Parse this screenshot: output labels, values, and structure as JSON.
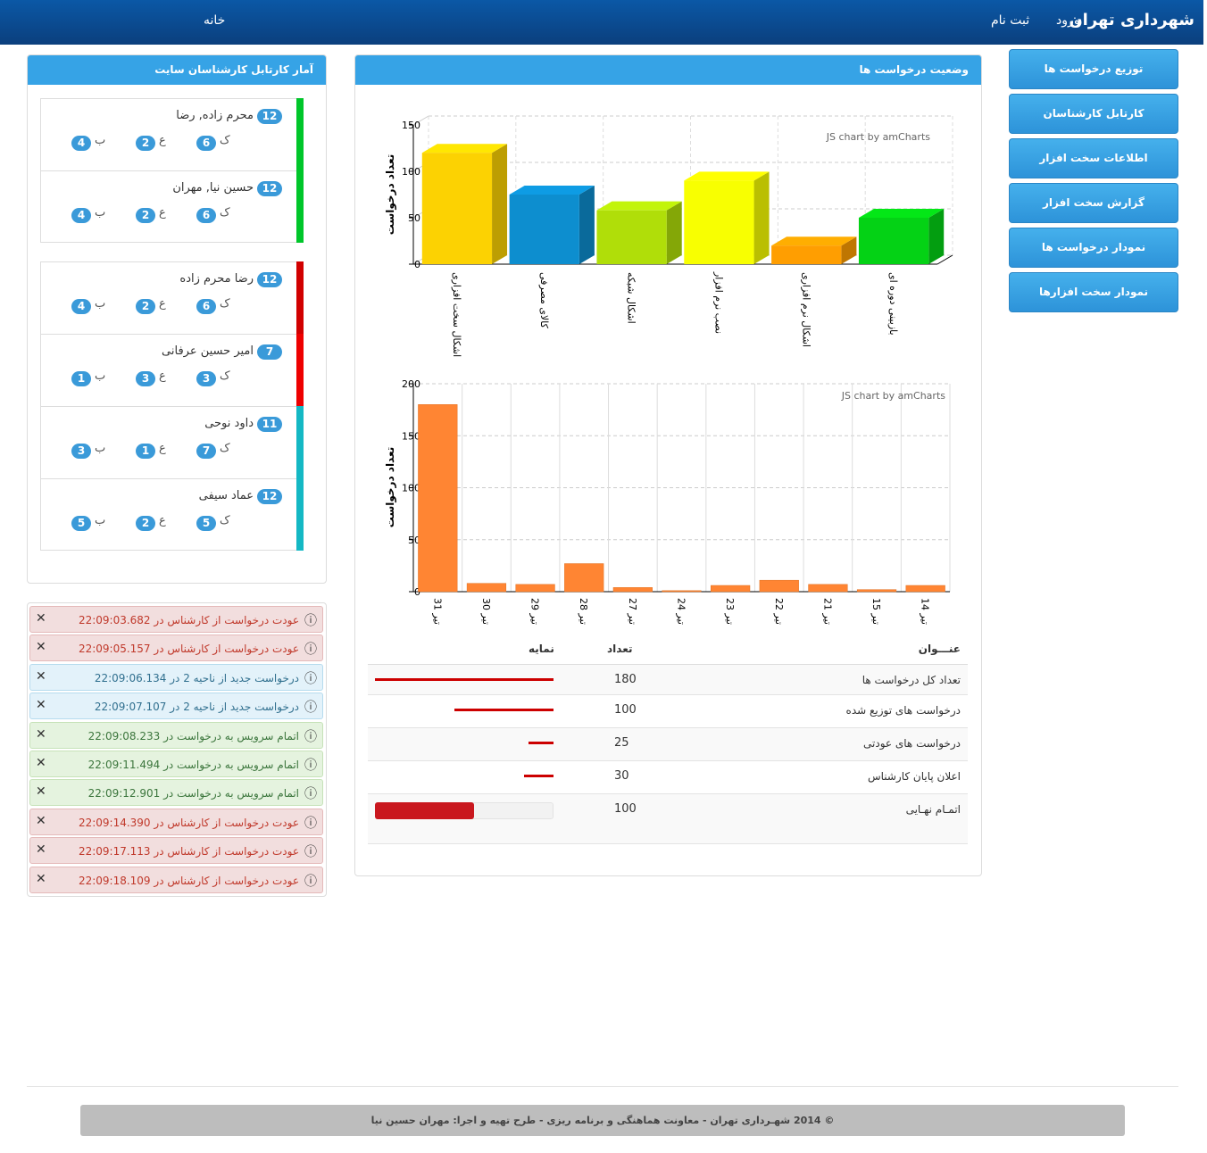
{
  "header": {
    "brand": "شهرداری تهران",
    "links": [
      "ورود",
      "ثبت نام"
    ],
    "home": "خانه"
  },
  "menu": [
    "توزیع درخواست ها",
    "کارتابل کارشناسان",
    "اطلاعات سخت افزار",
    "گزارش سخت افزار",
    "نمودار درخواست ها",
    "نمودار سخت افزارها"
  ],
  "experts_panel": {
    "title": "آمار کارتابل کارشناسان سایت",
    "badge_labels": [
      "ک",
      "ع",
      "ب"
    ],
    "groups": [
      {
        "items": [
          {
            "name": "محرم زاده, رضا",
            "total": 12,
            "counts": [
              6,
              2,
              4
            ],
            "color": "#00c62a"
          },
          {
            "name": "حسین نیا, مهران",
            "total": 12,
            "counts": [
              6,
              2,
              4
            ],
            "color": "#00c62a"
          }
        ]
      },
      {
        "items": [
          {
            "name": "رضا محرم زاده",
            "total": 12,
            "counts": [
              6,
              2,
              4
            ],
            "color": "#d10000"
          },
          {
            "name": "امیر حسین عرفانی",
            "total": 7,
            "counts": [
              3,
              3,
              1
            ],
            "color": "#ee0000"
          },
          {
            "name": "داود نوحی",
            "total": 11,
            "counts": [
              7,
              1,
              3
            ],
            "color": "#14b8c4"
          },
          {
            "name": "عماد سیفی",
            "total": 12,
            "counts": [
              5,
              2,
              5
            ],
            "color": "#14b8c4"
          }
        ]
      }
    ]
  },
  "alerts": [
    {
      "type": "danger",
      "text": "عودت درخواست از کارشناس در 22:09:03.682"
    },
    {
      "type": "danger",
      "text": "عودت درخواست از کارشناس در 22:09:05.157"
    },
    {
      "type": "info",
      "text": "درخواست جدید از ناحیه 2 در 22:09:06.134"
    },
    {
      "type": "info",
      "text": "درخواست جدید از ناحیه 2 در 22:09:07.107"
    },
    {
      "type": "success",
      "text": "اتمام سرویس به درخواست در 22:09:08.233"
    },
    {
      "type": "success",
      "text": "اتمام سرویس به درخواست در 22:09:11.494"
    },
    {
      "type": "success",
      "text": "اتمام سرویس به درخواست در 22:09:12.901"
    },
    {
      "type": "danger",
      "text": "عودت درخواست از کارشناس در 22:09:14.390"
    },
    {
      "type": "danger",
      "text": "عودت درخواست از کارشناس در 22:09:17.113"
    },
    {
      "type": "danger",
      "text": "عودت درخواست از کارشناس در 22:09:18.109"
    }
  ],
  "status_panel": {
    "title": "وضعیت درخواست ها",
    "charts": [
      {
        "type": "bar",
        "3d": true,
        "ylabel": "تعداد درخواست",
        "credit": "JS chart by amCharts",
        "categories": [
          "اشکال سخت افزاری",
          "کالای مصرفی",
          "اشکال شبکه",
          "نصب نرم افزار",
          "اشکال نرم افزاری",
          "بازبینی دوره ای"
        ],
        "values": [
          120,
          75,
          58,
          90,
          20,
          50
        ],
        "colors": [
          "#fcd202",
          "#0d8ecf",
          "#b0de09",
          "#f8ff01",
          "#ff9e01",
          "#04d215"
        ],
        "ylim": [
          0,
          150
        ],
        "yticks": [
          0,
          50,
          100,
          150
        ],
        "grid": true
      },
      {
        "type": "bar",
        "ylabel": "تعداد درخواست",
        "credit": "JS chart by amCharts",
        "categories": [
          "31 تیر",
          "30 تیر",
          "29 تیر",
          "28 تیر",
          "27 تیر",
          "24 تیر",
          "23 تیر",
          "22 تیر",
          "21 تیر",
          "15 تیر",
          "14 تیر"
        ],
        "values": [
          180,
          8,
          7,
          27,
          4,
          1,
          6,
          11,
          7,
          2,
          6
        ],
        "color": "#ff8533",
        "ylim": [
          0,
          200
        ],
        "yticks": [
          0,
          50,
          100,
          150,
          200
        ],
        "grid": true
      }
    ],
    "table": {
      "headers": [
        "عنـــوان",
        "تعداد",
        "نمایه"
      ],
      "rows": [
        {
          "title": "تعداد کل درخواست ها",
          "count": 180
        },
        {
          "title": "درخواست های توزیع شده",
          "count": 100
        },
        {
          "title": "درخواست های عودتی",
          "count": 25
        },
        {
          "title": "اعلان پایان کارشناس",
          "count": 30
        },
        {
          "title": "اتمـام نهـایی",
          "count": 100,
          "progress": true
        }
      ]
    }
  },
  "footer": "© 2014 شهـرداری تهران - معاونت هماهنگی و برنامه ریزی - طرح تهیه و اجرا: مهران حسین نیا"
}
